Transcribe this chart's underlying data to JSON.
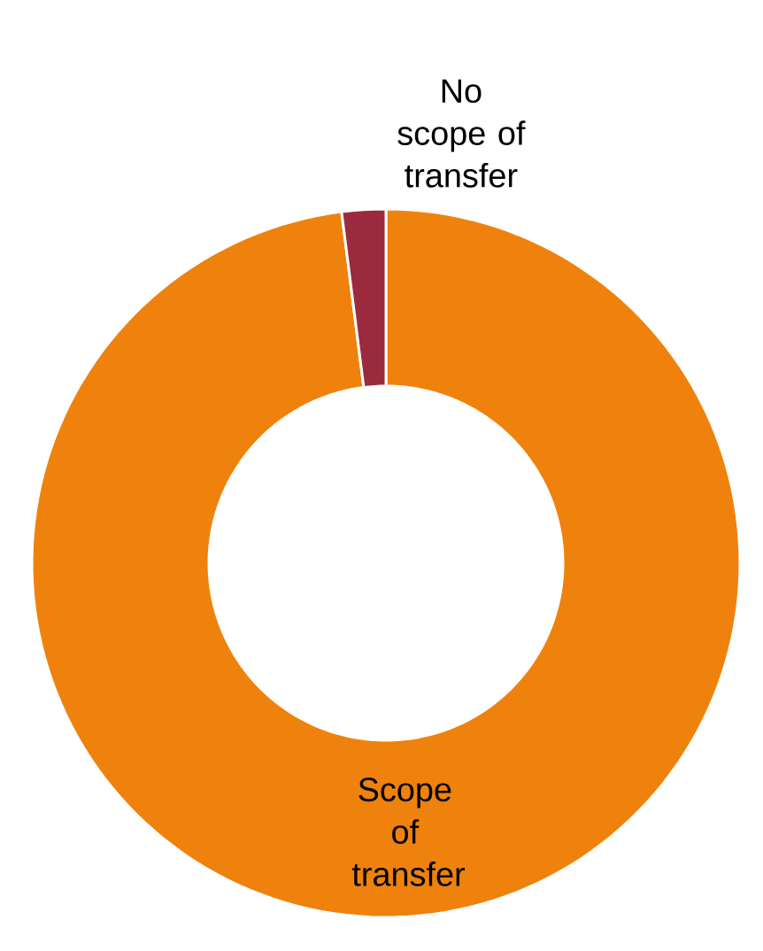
{
  "chart_data": {
    "type": "donut",
    "categories": [
      "Scope of transfer",
      "No scope of transfer"
    ],
    "values": [
      98,
      2
    ],
    "colors": [
      "#ef820d",
      "#9c2a3e"
    ]
  }
}
